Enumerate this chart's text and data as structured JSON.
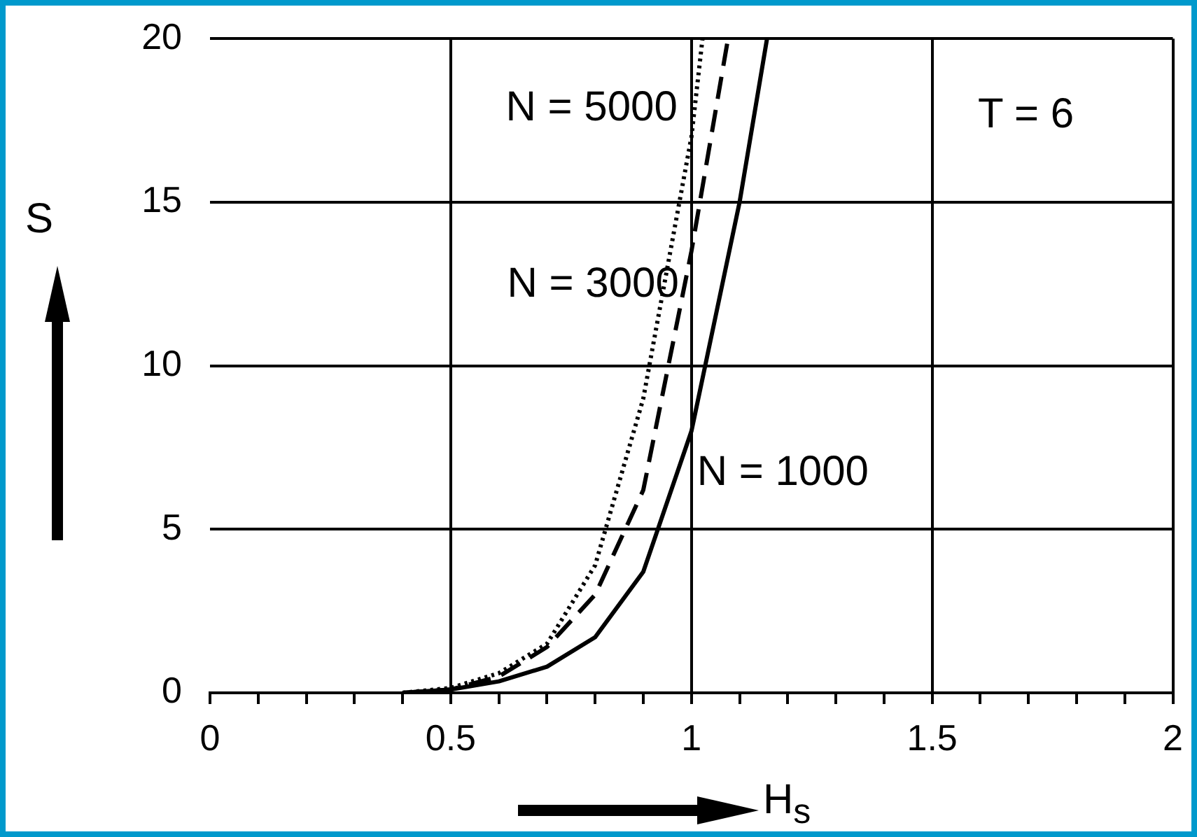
{
  "chart_data": {
    "type": "line",
    "xlabel": "H$_{s}$",
    "ylabel": "S",
    "annotations": [
      "T = 6"
    ],
    "xlim": [
      0,
      2
    ],
    "ylim": [
      0,
      20
    ],
    "xticks": [
      0,
      {
        "value": 0.1,
        "label": null
      },
      {
        "value": 0.2,
        "label": null
      },
      {
        "value": 0.3,
        "label": null
      },
      {
        "value": 0.4,
        "label": null
      },
      0.5,
      {
        "value": 0.6,
        "label": null
      },
      {
        "value": 0.7,
        "label": null
      },
      {
        "value": 0.8,
        "label": null
      },
      {
        "value": 0.9,
        "label": null
      },
      1,
      {
        "value": 1.1,
        "label": null
      },
      {
        "value": 1.2,
        "label": null
      },
      {
        "value": 1.3,
        "label": null
      },
      {
        "value": 1.4,
        "label": null
      },
      1.5,
      {
        "value": 1.6,
        "label": null
      },
      {
        "value": 1.7,
        "label": null
      },
      {
        "value": 1.8,
        "label": null
      },
      {
        "value": 1.9,
        "label": null
      },
      2
    ],
    "yticks": [
      0,
      5,
      10,
      15,
      20
    ],
    "grid": true,
    "legend": false,
    "marker": "none",
    "series": [
      {
        "name": "N = 5000",
        "color": "#000000",
        "line_style": "dotted",
        "x": [
          0.4,
          0.5,
          0.6,
          0.7,
          0.8,
          0.9,
          1.0,
          1.023
        ],
        "values": [
          0,
          0.15,
          0.6,
          1.5,
          3.9,
          9,
          17,
          20
        ]
      },
      {
        "name": "N = 3000",
        "color": "#000000",
        "line_style": "dashed",
        "x": [
          0.4,
          0.5,
          0.6,
          0.7,
          0.8,
          0.9,
          1.0,
          1.076
        ],
        "values": [
          0,
          0.1,
          0.5,
          1.4,
          3.0,
          6.2,
          13.5,
          20
        ]
      },
      {
        "name": "N = 1000",
        "color": "#000000",
        "line_style": "solid",
        "x": [
          0.4,
          0.5,
          0.6,
          0.7,
          0.8,
          0.9,
          1.0,
          1.1,
          1.157
        ],
        "values": [
          0,
          0.1,
          0.35,
          0.8,
          1.7,
          3.7,
          8,
          15,
          20
        ]
      }
    ]
  }
}
